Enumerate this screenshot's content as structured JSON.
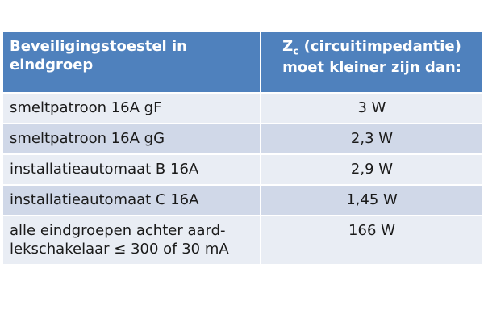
{
  "table": {
    "header": [
      "Beveiligingstoestel in eindgroep",
      {
        "main": "Z",
        "sub": "c",
        "rest": " (circuitimpedantie) moet kleiner zijn dan:"
      }
    ],
    "rows": [
      [
        "smeltpatroon 16A gF",
        "3 W"
      ],
      [
        "smeltpatroon 16A gG",
        "2,3 W"
      ],
      [
        "installatieautomaat B 16A",
        "2,9 W"
      ],
      [
        "installatieautomaat C 16A",
        "1,45 W"
      ],
      [
        "alle eindgroepen achter aard-lekschakelaar ≤ 300 of 30 mA",
        "166 W"
      ]
    ]
  }
}
